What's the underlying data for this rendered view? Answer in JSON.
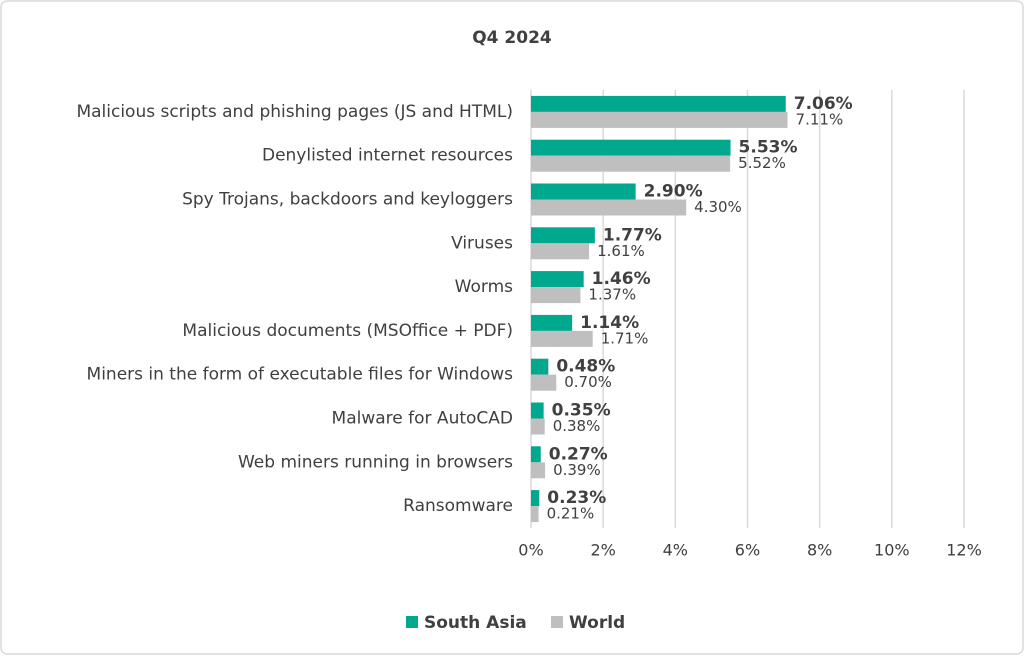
{
  "chart_data": {
    "type": "bar",
    "orientation": "horizontal",
    "title": "Q4 2024",
    "categories": [
      "Malicious scripts and phishing pages (JS and HTML)",
      "Denylisted internet resources",
      "Spy Trojans, backdoors and keyloggers",
      "Viruses",
      "Worms",
      "Malicious documents (MSOffice + PDF)",
      "Miners in the form of executable files for Windows",
      "Malware for AutoCAD",
      "Web miners running in browsers",
      "Ransomware"
    ],
    "series": [
      {
        "name": "South Asia",
        "color": "#00a88e",
        "values": [
          7.06,
          5.53,
          2.9,
          1.77,
          1.46,
          1.14,
          0.48,
          0.35,
          0.27,
          0.23
        ],
        "value_labels": [
          "7.06%",
          "5.53%",
          "2.90%",
          "1.77%",
          "1.46%",
          "1.14%",
          "0.48%",
          "0.35%",
          "0.27%",
          "0.23%"
        ]
      },
      {
        "name": "World",
        "color": "#bfbfbf",
        "values": [
          7.11,
          5.52,
          4.3,
          1.61,
          1.37,
          1.71,
          0.7,
          0.38,
          0.39,
          0.21
        ],
        "value_labels": [
          "7.11%",
          "5.52%",
          "4.30%",
          "1.61%",
          "1.37%",
          "1.71%",
          "0.70%",
          "0.38%",
          "0.39%",
          "0.21%"
        ]
      }
    ],
    "xlim": [
      0,
      12
    ],
    "xticks": [
      {
        "value": 0,
        "label": "0%"
      },
      {
        "value": 2,
        "label": "2%"
      },
      {
        "value": 4,
        "label": "4%"
      },
      {
        "value": 6,
        "label": "6%"
      },
      {
        "value": 8,
        "label": "8%"
      },
      {
        "value": 10,
        "label": "10%"
      },
      {
        "value": 12,
        "label": "12%"
      }
    ],
    "grid": true,
    "legend": "bottom"
  }
}
